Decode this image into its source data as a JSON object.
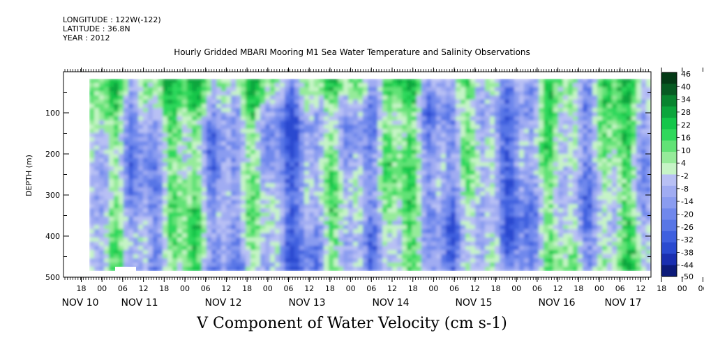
{
  "meta": {
    "longitude": "LONGITUDE : 122W(-122)",
    "latitude": "LATITUDE : 36.8N",
    "year": "YEAR : 2012"
  },
  "chart_data": {
    "type": "heatmap",
    "title": "Hourly Gridded MBARI Mooring M1 Sea Water Temperature and Salinity Observations",
    "subtitle": "V Component of Water Velocity (cm s-1)",
    "ylabel": "DEPTH (m)",
    "xlabel": "",
    "yaxis": {
      "range": [
        0,
        500
      ],
      "inverted": true,
      "ticks": [
        100,
        200,
        300,
        400,
        500
      ]
    },
    "xaxis": {
      "hour_ticks": [
        "18",
        "00",
        "06",
        "12",
        "18",
        "00",
        "06",
        "12",
        "18",
        "00",
        "06",
        "12",
        "18",
        "00",
        "06",
        "12",
        "18",
        "00",
        "06",
        "12",
        "18",
        "00",
        "06",
        "12",
        "18",
        "00",
        "06",
        "12",
        "18",
        "00",
        "06",
        "12"
      ],
      "date_labels": [
        "NOV 10",
        "NOV 11",
        "NOV 12",
        "NOV 13",
        "NOV 14",
        "NOV 15",
        "NOV 16",
        "NOV 17"
      ]
    },
    "colorbar": {
      "labels": [
        "46",
        "40",
        "34",
        "28",
        "22",
        "16",
        "10",
        "4",
        "-2",
        "-8",
        "-14",
        "-20",
        "-26",
        "-32",
        "-38",
        "-44",
        "-50"
      ],
      "range": [
        -50,
        46
      ]
    },
    "grid": false
  }
}
